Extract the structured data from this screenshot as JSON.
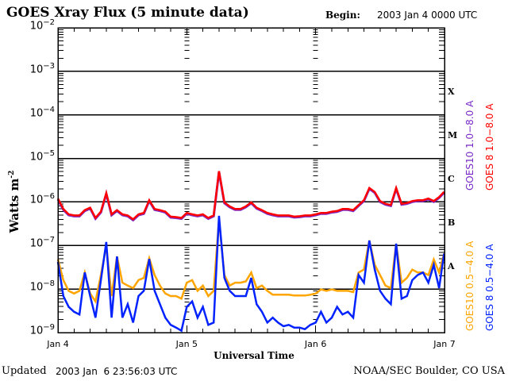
{
  "chart_data": {
    "type": "line",
    "title": "GOES Xray Flux (5 minute data)",
    "begin_label": "Begin:",
    "begin_value": "2003 Jan 4 0000 UTC",
    "xlabel": "Universal Time",
    "ylabel": "Watts m",
    "ylabel_sup": "-2",
    "y_scale": "log",
    "ylim": [
      1e-09,
      0.01
    ],
    "y_tick_base": "10",
    "y_tick_exponents": [
      "-2",
      "-3",
      "-4",
      "-5",
      "-6",
      "-7",
      "-8",
      "-9"
    ],
    "xlim": [
      "2003-01-04 00:00",
      "2003-01-07 00:00"
    ],
    "x_tick_labels": [
      "Jan 4",
      "Jan 5",
      "Jan 6",
      "Jan 7"
    ],
    "grid": "horizontal at each decade",
    "flare_classes": [
      "X",
      "M",
      "C",
      "B",
      "A"
    ],
    "legend_placement": "right, rotated",
    "x": [
      "2003-01-04 00:00",
      "2003-01-04 01:00",
      "2003-01-04 02:00",
      "2003-01-04 03:00",
      "2003-01-04 04:00",
      "2003-01-04 05:00",
      "2003-01-04 06:00",
      "2003-01-04 07:00",
      "2003-01-04 08:00",
      "2003-01-04 09:00",
      "2003-01-04 10:00",
      "2003-01-04 11:00",
      "2003-01-04 12:00",
      "2003-01-04 13:00",
      "2003-01-04 14:00",
      "2003-01-04 15:00",
      "2003-01-04 16:00",
      "2003-01-04 17:00",
      "2003-01-04 18:00",
      "2003-01-04 19:00",
      "2003-01-04 20:00",
      "2003-01-04 21:00",
      "2003-01-04 22:00",
      "2003-01-04 23:00",
      "2003-01-05 00:00",
      "2003-01-05 01:00",
      "2003-01-05 02:00",
      "2003-01-05 03:00",
      "2003-01-05 04:00",
      "2003-01-05 05:00",
      "2003-01-05 06:00",
      "2003-01-05 07:00",
      "2003-01-05 08:00",
      "2003-01-05 09:00",
      "2003-01-05 10:00",
      "2003-01-05 11:00",
      "2003-01-05 12:00",
      "2003-01-05 13:00",
      "2003-01-05 14:00",
      "2003-01-05 15:00",
      "2003-01-05 16:00",
      "2003-01-05 17:00",
      "2003-01-05 18:00",
      "2003-01-05 19:00",
      "2003-01-05 20:00",
      "2003-01-05 21:00",
      "2003-01-05 22:00",
      "2003-01-05 23:00",
      "2003-01-06 00:00",
      "2003-01-06 01:00",
      "2003-01-06 02:00",
      "2003-01-06 03:00",
      "2003-01-06 04:00",
      "2003-01-06 05:00",
      "2003-01-06 06:00",
      "2003-01-06 07:00",
      "2003-01-06 08:00",
      "2003-01-06 09:00",
      "2003-01-06 10:00",
      "2003-01-06 11:00",
      "2003-01-06 12:00",
      "2003-01-06 13:00",
      "2003-01-06 14:00",
      "2003-01-06 15:00",
      "2003-01-06 16:00",
      "2003-01-06 17:00",
      "2003-01-06 18:00",
      "2003-01-06 19:00",
      "2003-01-06 20:00",
      "2003-01-06 21:00",
      "2003-01-06 22:00",
      "2003-01-06 23:00",
      "2003-01-06 23:55"
    ],
    "series": [
      {
        "name": "GOES10 1.0-8.0 A",
        "color": "#7a2ac8",
        "values": [
          1.2e-06,
          6.9e-07,
          5.2e-07,
          4.9e-07,
          4.9e-07,
          6.5e-07,
          7.4e-07,
          4.3e-07,
          6e-07,
          1.6e-06,
          5.2e-07,
          6.5e-07,
          5.2e-07,
          4.9e-07,
          4e-07,
          5.2e-07,
          5.6e-07,
          1.1e-06,
          6.9e-07,
          6.5e-07,
          6e-07,
          4.6e-07,
          4.5e-07,
          4.3e-07,
          5.6e-07,
          5.2e-07,
          4.9e-07,
          5.2e-07,
          4.3e-07,
          4.9e-07,
          5.1e-06,
          9.8e-07,
          7.9e-07,
          6.9e-07,
          6.9e-07,
          7.9e-07,
          9.8e-07,
          7.4e-07,
          6.5e-07,
          5.6e-07,
          5.2e-07,
          4.9e-07,
          4.9e-07,
          4.9e-07,
          4.6e-07,
          4.7e-07,
          4.9e-07,
          4.9e-07,
          5.2e-07,
          5.6e-07,
          5.6e-07,
          6e-07,
          6.2e-07,
          6.9e-07,
          6.9e-07,
          6.5e-07,
          8.5e-07,
          1.1e-06,
          2.1e-06,
          1.7e-06,
          1.05e-06,
          9.1e-07,
          8.5e-07,
          2.1e-06,
          9.1e-07,
          9.5e-07,
          1.05e-06,
          1.1e-06,
          1.1e-06,
          1.2e-06,
          1.05e-06,
          1.3e-06,
          1.7e-06
        ]
      },
      {
        "name": "GOES 8 1.0-8.0 A",
        "color": "#ff0000",
        "values": [
          1.2e-06,
          6.9e-07,
          5.2e-07,
          4.9e-07,
          4.9e-07,
          6.5e-07,
          7.4e-07,
          4.3e-07,
          6e-07,
          1.6e-06,
          5.2e-07,
          6.5e-07,
          5.2e-07,
          4.9e-07,
          4e-07,
          5.2e-07,
          5.6e-07,
          1.1e-06,
          6.9e-07,
          6.5e-07,
          6e-07,
          4.6e-07,
          4.5e-07,
          4.3e-07,
          5.6e-07,
          5.2e-07,
          4.9e-07,
          5.2e-07,
          4.3e-07,
          4.9e-07,
          5.1e-06,
          9.8e-07,
          7.9e-07,
          6.9e-07,
          6.9e-07,
          7.9e-07,
          9.8e-07,
          7.4e-07,
          6.5e-07,
          5.6e-07,
          5.2e-07,
          4.9e-07,
          4.9e-07,
          4.9e-07,
          4.6e-07,
          4.7e-07,
          4.9e-07,
          4.9e-07,
          5.2e-07,
          5.6e-07,
          5.6e-07,
          6e-07,
          6.2e-07,
          6.9e-07,
          6.9e-07,
          6.5e-07,
          8.5e-07,
          1.1e-06,
          2.1e-06,
          1.7e-06,
          1.05e-06,
          9.1e-07,
          8.5e-07,
          2.1e-06,
          9.1e-07,
          9.5e-07,
          1.05e-06,
          1.1e-06,
          1.1e-06,
          1.2e-06,
          1.05e-06,
          1.3e-06,
          1.7e-06
        ]
      },
      {
        "name": "GOES10 0.5-4.0 A",
        "color": "#ffa500",
        "values": [
          4.8e-08,
          1.6e-08,
          9.1e-09,
          7.9e-09,
          9.1e-09,
          2.4e-08,
          7.9e-09,
          5.2e-09,
          2.1e-08,
          9.8e-08,
          6.9e-09,
          5.6e-08,
          1.4e-08,
          1.2e-08,
          1.05e-08,
          1.6e-08,
          1.8e-08,
          5.1e-08,
          2.1e-08,
          1.2e-08,
          7.9e-09,
          6.9e-09,
          6.9e-09,
          6e-09,
          1.4e-08,
          1.6e-08,
          9.1e-09,
          1.2e-08,
          6.9e-09,
          9.1e-09,
          3.9e-07,
          2.1e-08,
          1.2e-08,
          1.4e-08,
          1.4e-08,
          1.5e-08,
          2.4e-08,
          1.05e-08,
          1.2e-08,
          9.1e-09,
          7.4e-09,
          7.4e-09,
          7.4e-09,
          7.4e-09,
          7.1e-09,
          7.1e-09,
          7.1e-09,
          7.4e-09,
          7.9e-09,
          9.8e-09,
          9.1e-09,
          9.8e-09,
          9.1e-09,
          9.1e-09,
          9.1e-09,
          8.5e-09,
          2.4e-08,
          2.8e-08,
          1.3e-07,
          3.6e-08,
          2.1e-08,
          1.2e-08,
          1.05e-08,
          1.1e-07,
          1.4e-08,
          1.8e-08,
          2.8e-08,
          2.4e-08,
          2.4e-08,
          2.1e-08,
          4.8e-08,
          2.4e-08,
          6.5e-08
        ]
      },
      {
        "name": "GOES 8 0.5-4.0 A",
        "color": "#0022ff",
        "values": [
          4.2e-08,
          6.9e-09,
          3.9e-09,
          3e-09,
          2.6e-09,
          2.4e-08,
          6.9e-09,
          2.2e-09,
          1.6e-08,
          1.2e-07,
          2.2e-09,
          5.6e-08,
          2.2e-09,
          4.5e-09,
          1.7e-09,
          6.9e-09,
          9.1e-09,
          4.9e-08,
          9.1e-09,
          4.5e-09,
          2.2e-09,
          1.5e-09,
          1.3e-09,
          1.1e-09,
          3.9e-09,
          5.2e-09,
          2.2e-09,
          3.9e-09,
          1.5e-09,
          1.7e-09,
          4.8e-07,
          1.8e-08,
          9.1e-09,
          6.9e-09,
          6.9e-09,
          6.9e-09,
          1.8e-08,
          4.5e-09,
          3e-09,
          1.7e-09,
          2.2e-09,
          1.7e-09,
          1.4e-09,
          1.5e-09,
          1.3e-09,
          1.3e-09,
          1.2e-09,
          1.5e-09,
          1.7e-09,
          3e-09,
          1.7e-09,
          2.2e-09,
          3.9e-09,
          2.6e-09,
          3e-09,
          2.2e-09,
          2.1e-08,
          1.4e-08,
          1.3e-07,
          2.8e-08,
          9.1e-09,
          6e-09,
          4.5e-09,
          1.1e-07,
          6e-09,
          6.9e-09,
          1.6e-08,
          2.1e-08,
          2.4e-08,
          1.4e-08,
          3.6e-08,
          1.05e-08,
          6.5e-08
        ]
      }
    ]
  },
  "footer": {
    "updated_label": "Updated",
    "updated_value": "2003 Jan  6 23:56:03 UTC",
    "credit": "NOAA/SEC Boulder, CO USA"
  }
}
